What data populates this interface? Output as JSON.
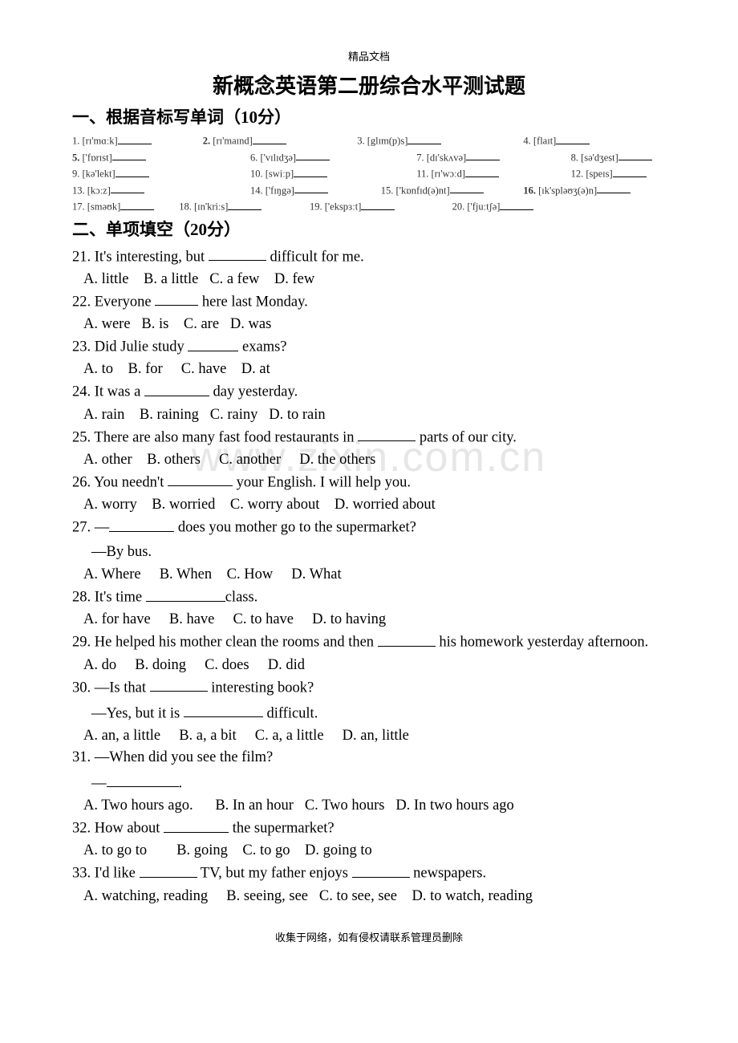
{
  "header_small": "精品文档",
  "title": "新概念英语第二册综合水平测试题",
  "section1_title": "一、根据音标写单词（10分）",
  "section2_title": "二、单项填空（20分）",
  "watermark": "www.zixin.com.cn",
  "footer": "收集于网络，如有侵权请联系管理员删除",
  "phonetic_rows": [
    [
      {
        "n": "1.",
        "p": "[rɪ'mɑːk]",
        "b": false
      },
      {
        "n": "2.",
        "p": "[rɪ'maɪnd]",
        "b": true
      },
      {
        "n": "3.",
        "p": "[glɪm(p)s]",
        "b": false
      },
      {
        "n": "4.",
        "p": "[flaɪt]",
        "b": false
      }
    ],
    [
      {
        "n": "5.",
        "p": "['fɒrɪst]",
        "b": true
      },
      {
        "n": "6.",
        "p": "['vɪlɪdʒə]",
        "b": false
      },
      {
        "n": "7.",
        "p": "[dɪ'skʌvə]",
        "b": false
      },
      {
        "n": "8.",
        "p": "[sə'dʒest]",
        "b": false
      }
    ],
    [
      {
        "n": "9.",
        "p": "[kə'lekt]",
        "b": false
      },
      {
        "n": "10.",
        "p": "[swiːp]",
        "b": false
      },
      {
        "n": "11.",
        "p": "[rɪ'wɔːd]",
        "b": false
      },
      {
        "n": "12.",
        "p": "[speɪs]",
        "b": false
      }
    ],
    [
      {
        "n": "13.",
        "p": "[kɔːz]",
        "b": false
      },
      {
        "n": "14.",
        "p": "['fɪŋgə]",
        "b": false
      },
      {
        "n": "15.",
        "p": "['kɒnfɪd(ə)nt]",
        "b": false
      },
      {
        "n": "16.",
        "p": "[ɪk'spləʊʒ(ə)n]",
        "b": true
      }
    ],
    [
      {
        "n": "17.",
        "p": "[sməʊk]",
        "b": false
      },
      {
        "n": "18.",
        "p": "[ɪn'kriːs]",
        "b": false
      },
      {
        "n": "19.",
        "p": "['ekspɜːt]",
        "b": false
      },
      {
        "n": "20.",
        "p": "['fjuːtʃə]",
        "b": false
      }
    ]
  ],
  "row_widths": [
    [
      "22%",
      "26%",
      "28%",
      "24%"
    ],
    [
      "30%",
      "28%",
      "26%",
      "16%"
    ],
    [
      "30%",
      "28%",
      "26%",
      "16%"
    ],
    [
      "30%",
      "22%",
      "24%",
      "24%"
    ],
    [
      "18%",
      "22%",
      "24%",
      "36%"
    ]
  ],
  "questions": [
    {
      "num": "21.",
      "text": "It's interesting, but ________ difficult for me.",
      "choices": "A. little    B. a little   C. a few    D. few"
    },
    {
      "num": "22.",
      "text": "Everyone ______ here last Monday.",
      "choices": "A. were   B. is    C. are   D. was"
    },
    {
      "num": "23.",
      "text": "Did Julie study _______ exams?",
      "choices": "A. to    B. for     C. have    D. at"
    },
    {
      "num": "24.",
      "text": "It was a _________ day yesterday.",
      "choices": "A. rain    B. raining   C. rainy   D. to rain"
    },
    {
      "num": "25.",
      "text": "There are also many fast food restaurants in ________ parts of our city.",
      "choices": "A. other    B. others     C. another     D. the others"
    },
    {
      "num": "26.",
      "text": "You needn't _________ your English. I will help you.",
      "choices": "A. worry    B. worried    C. worry about    D. worried about"
    },
    {
      "num": "27.",
      "text": "—_________ does you mother go to the supermarket?",
      "extra": "—By bus.",
      "choices": "A. Where     B. When    C. How     D. What"
    },
    {
      "num": "28.",
      "text": "It's time ___________class.",
      "choices": "A. for have     B. have     C. to have     D. to having"
    },
    {
      "num": "29.",
      "text": "He helped his mother clean the rooms and then ________  his homework yesterday afternoon.",
      "choices": "A. do     B. doing     C. does     D. did"
    },
    {
      "num": "30.",
      "text": "—Is that ________  interesting book?",
      "extra": "—Yes, but it is ___________  difficult.",
      "choices": "A. an, a little     B. a, a bit     C. a, a little     D. an, little"
    },
    {
      "num": "31.",
      "text": "—When did you see the film?",
      "extra": "—__________.",
      "choices": "A. Two hours ago.      B. In an hour   C. Two hours   D. In two hours ago"
    },
    {
      "num": "32.",
      "text": "How about _________  the supermarket?",
      "choices": "A. to go to        B. going    C. to go    D. going to"
    },
    {
      "num": "33.",
      "text": "I'd like ________  TV, but my father enjoys ________  newspapers.",
      "choices": "A. watching, reading     B. seeing, see   C. to see, see    D. to watch, reading"
    }
  ]
}
